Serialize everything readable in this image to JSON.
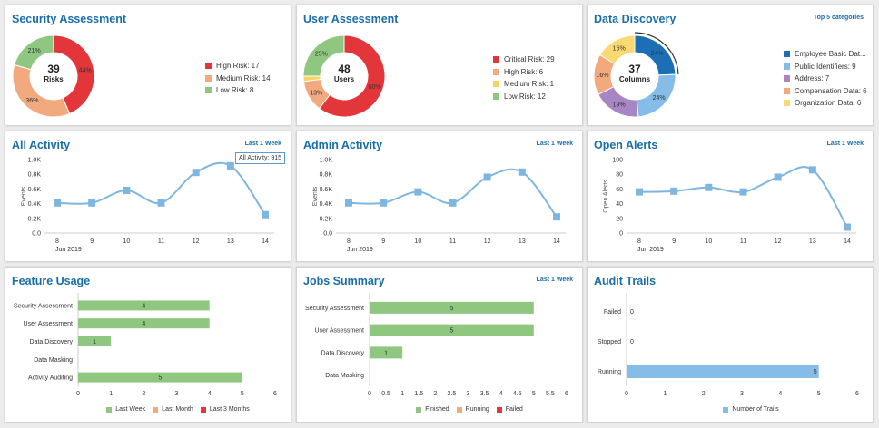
{
  "security_assessment": {
    "title": "Security Assessment",
    "center_value": "39",
    "center_label": "Risks",
    "slices": [
      {
        "label": "High Risk: 17",
        "value": 17,
        "pct": "44%",
        "color": "#e3363b"
      },
      {
        "label": "Medium Risk: 14",
        "value": 14,
        "pct": "36%",
        "color": "#f2a97e"
      },
      {
        "label": "Low Risk: 8",
        "value": 8,
        "pct": "21%",
        "color": "#8fc780"
      }
    ]
  },
  "user_assessment": {
    "title": "User Assessment",
    "center_value": "48",
    "center_label": "Users",
    "slices": [
      {
        "label": "Critical Risk: 29",
        "value": 29,
        "pct": "60%",
        "color": "#e3363b"
      },
      {
        "label": "High Risk: 6",
        "value": 6,
        "pct": "13%",
        "color": "#f2a97e"
      },
      {
        "label": "Medium Risk: 1",
        "value": 1,
        "pct": "",
        "color": "#f7d35f"
      },
      {
        "label": "Low Risk: 12",
        "value": 12,
        "pct": "25%",
        "color": "#8fc780"
      }
    ]
  },
  "data_discovery": {
    "title": "Data Discovery",
    "link": "Top 5 categories",
    "center_value": "37",
    "center_label": "Columns",
    "slices": [
      {
        "label": "Employee Basic Dat...",
        "value": 9,
        "pct": "24%",
        "color": "#1d6fb5"
      },
      {
        "label": "Public Identifiers: 9",
        "value": 9,
        "pct": "24%",
        "color": "#86bde8"
      },
      {
        "label": "Address: 7",
        "value": 7,
        "pct": "19%",
        "color": "#a886c4"
      },
      {
        "label": "Compensation Data: 6",
        "value": 6,
        "pct": "16%",
        "color": "#f2a97e"
      },
      {
        "label": "Organization Data: 6",
        "value": 6,
        "pct": "16%",
        "color": "#fbd972"
      }
    ]
  },
  "all_activity": {
    "title": "All Activity",
    "link": "Last 1 Week",
    "ylabel": "Events",
    "month_label": "Jun 2019",
    "tooltip": "All Activity: 915",
    "chart_data": {
      "type": "line",
      "categories": [
        "8",
        "9",
        "10",
        "11",
        "12",
        "13",
        "14"
      ],
      "y_ticks": [
        "0.0",
        "0.2K",
        "0.4K",
        "0.6K",
        "0.8K",
        "1.0K"
      ],
      "ylim": [
        0,
        1000
      ],
      "values": [
        410,
        410,
        580,
        410,
        825,
        915,
        250
      ]
    }
  },
  "admin_activity": {
    "title": "Admin Activity",
    "link": "Last 1 Week",
    "ylabel": "Events",
    "month_label": "Jun 2019",
    "chart_data": {
      "type": "line",
      "categories": [
        "8",
        "9",
        "10",
        "11",
        "12",
        "13",
        "14"
      ],
      "y_ticks": [
        "0.0",
        "0.2K",
        "0.4K",
        "0.6K",
        "0.8K",
        "1.0K"
      ],
      "ylim": [
        0,
        1000
      ],
      "values": [
        410,
        410,
        560,
        410,
        760,
        830,
        220
      ]
    }
  },
  "open_alerts": {
    "title": "Open Alerts",
    "link": "Last 1 Week",
    "ylabel": "Open Alerts",
    "month_label": "Jun 2019",
    "chart_data": {
      "type": "line",
      "categories": [
        "8",
        "9",
        "10",
        "11",
        "12",
        "13",
        "14"
      ],
      "y_ticks": [
        "0",
        "20",
        "40",
        "60",
        "80",
        "100"
      ],
      "ylim": [
        0,
        100
      ],
      "values": [
        56,
        57,
        62,
        56,
        76,
        86,
        8
      ]
    }
  },
  "feature_usage": {
    "title": "Feature Usage",
    "chart_data": {
      "type": "bar",
      "categories": [
        "Security Assessment",
        "User Assessment",
        "Data Discovery",
        "Data Masking",
        "Activity Auditing"
      ],
      "values": [
        4,
        4,
        1,
        null,
        5
      ],
      "x_ticks": [
        "0",
        "1",
        "2",
        "3",
        "4",
        "5",
        "6"
      ],
      "xlim": [
        0,
        6
      ],
      "bar_color": "#8fc780"
    },
    "legend": [
      {
        "label": "Last Week",
        "color": "#8fc780"
      },
      {
        "label": "Last Month",
        "color": "#f2a97e"
      },
      {
        "label": "Last 3 Months",
        "color": "#e3363b"
      }
    ]
  },
  "jobs_summary": {
    "title": "Jobs Summary",
    "link": "Last 1 Week",
    "chart_data": {
      "type": "bar",
      "categories": [
        "Security Assessment",
        "User Assessment",
        "Data Discovery",
        "Data Masking"
      ],
      "values": [
        5,
        5,
        1,
        null
      ],
      "x_ticks": [
        "0",
        "0.5",
        "1",
        "1.5",
        "2",
        "2.5",
        "3",
        "3.5",
        "4",
        "4.5",
        "5",
        "5.5",
        "6"
      ],
      "xlim": [
        0,
        6
      ],
      "bar_color": "#8fc780"
    },
    "legend": [
      {
        "label": "Finished",
        "color": "#8fc780"
      },
      {
        "label": "Running",
        "color": "#f2a97e"
      },
      {
        "label": "Failed",
        "color": "#e3363b"
      }
    ]
  },
  "audit_trails": {
    "title": "Audit Trails",
    "chart_data": {
      "type": "bar",
      "categories": [
        "Failed",
        "Stopped",
        "Running"
      ],
      "values": [
        0,
        0,
        5
      ],
      "x_ticks": [
        "0",
        "1",
        "2",
        "3",
        "4",
        "5",
        "6"
      ],
      "xlim": [
        0,
        6
      ],
      "bar_color": "#86bde8"
    },
    "legend": [
      {
        "label": "Number of Trails",
        "color": "#86bde8"
      }
    ]
  }
}
